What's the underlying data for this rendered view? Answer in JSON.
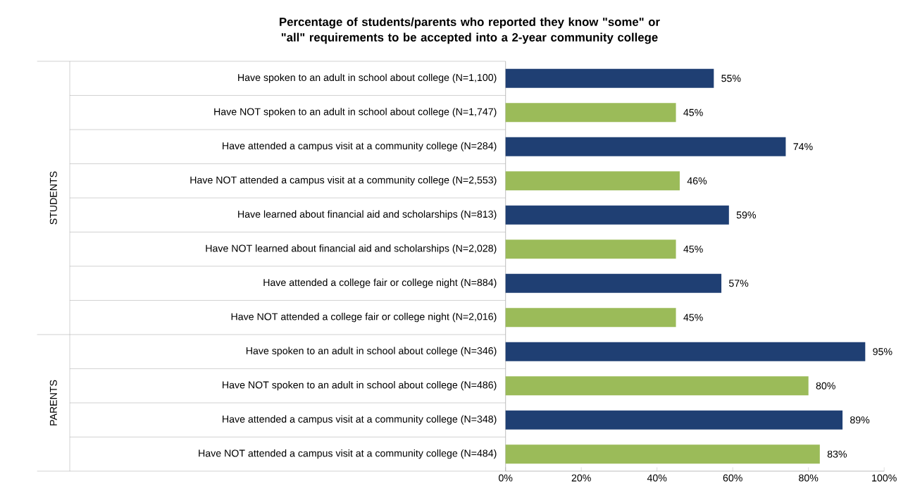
{
  "chart_data": {
    "type": "bar",
    "orientation": "horizontal",
    "title": "Percentage of students/parents who reported they know \"some\" or \"all\" requirements to be accepted into a 2-year community college",
    "categories": [
      "Have spoken to an adult in school about college (N=1,100)",
      "Have NOT spoken to an adult in school about college (N=1,747)",
      "Have attended a campus visit at a community college (N=284)",
      "Have NOT attended a campus visit at a community college (N=2,553)",
      "Have learned about financial aid and scholarships (N=813)",
      "Have NOT learned about financial aid and scholarships (N=2,028)",
      "Have attended a college fair or college night (N=884)",
      "Have NOT attended a college fair or college night (N=2,016)",
      "Have spoken to an adult in school about college (N=346)",
      "Have NOT spoken to an adult in school about college (N=486)",
      "Have attended a campus visit at a community college (N=348)",
      "Have NOT attended a campus visit at a community college (N=484)"
    ],
    "values": [
      55,
      45,
      74,
      46,
      59,
      45,
      57,
      45,
      95,
      80,
      89,
      83
    ],
    "value_labels": [
      "55%",
      "45%",
      "74%",
      "46%",
      "59%",
      "45%",
      "57%",
      "45%",
      "95%",
      "80%",
      "89%",
      "83%"
    ],
    "colors": [
      "#1f3f73",
      "#9bbb59",
      "#1f3f73",
      "#9bbb59",
      "#1f3f73",
      "#9bbb59",
      "#1f3f73",
      "#9bbb59",
      "#1f3f73",
      "#9bbb59",
      "#1f3f73",
      "#9bbb59"
    ],
    "xlim": [
      0,
      100
    ],
    "xticks": [
      {
        "value": 0,
        "label": "0%"
      },
      {
        "value": 20,
        "label": "20%"
      },
      {
        "value": 40,
        "label": "40%"
      },
      {
        "value": 60,
        "label": "60%"
      },
      {
        "value": 80,
        "label": "80%"
      },
      {
        "value": 100,
        "label": "100%"
      }
    ],
    "annotations": [
      "STUDENTS",
      "PARENTS"
    ],
    "grid": false
  }
}
